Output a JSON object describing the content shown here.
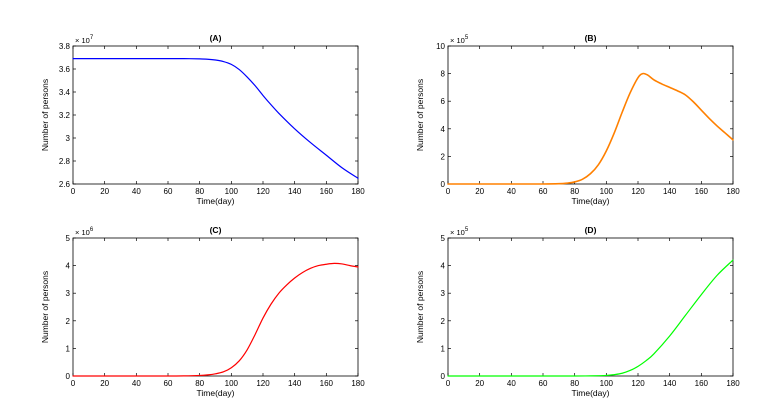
{
  "chart_data": [
    {
      "type": "line",
      "title": "(A)",
      "xlabel": "Time(day)",
      "ylabel": "Number of persons",
      "xlim": [
        0,
        180
      ],
      "xticks": [
        "0",
        "20",
        "40",
        "60",
        "80",
        "100",
        "120",
        "140",
        "160",
        "180"
      ],
      "ylim": [
        2.6,
        3.8
      ],
      "yticks": [
        "2.6",
        "2.8",
        "3",
        "3.2",
        "3.4",
        "3.6",
        "3.8"
      ],
      "multiplier_base": "× 10",
      "multiplier_exp": "7",
      "color": "#0000ff",
      "x": [
        0,
        20,
        40,
        60,
        70,
        80,
        85,
        90,
        95,
        100,
        105,
        110,
        115,
        120,
        125,
        130,
        140,
        150,
        160,
        170,
        180
      ],
      "y": [
        3.69,
        3.69,
        3.69,
        3.69,
        3.69,
        3.688,
        3.685,
        3.678,
        3.665,
        3.64,
        3.595,
        3.53,
        3.455,
        3.37,
        3.29,
        3.215,
        3.08,
        2.96,
        2.85,
        2.74,
        2.65
      ]
    },
    {
      "type": "line",
      "title": "(B)",
      "xlabel": "Time(day)",
      "ylabel": "Number of persons",
      "xlim": [
        0,
        180
      ],
      "xticks": [
        "0",
        "20",
        "40",
        "60",
        "80",
        "100",
        "120",
        "140",
        "160",
        "180"
      ],
      "ylim": [
        0,
        10
      ],
      "yticks": [
        "0",
        "2",
        "4",
        "6",
        "8",
        "10"
      ],
      "multiplier_base": "× 10",
      "multiplier_exp": "5",
      "color": "#ff8000",
      "x": [
        0,
        20,
        40,
        60,
        70,
        75,
        80,
        85,
        90,
        95,
        100,
        105,
        110,
        115,
        120,
        123,
        126,
        130,
        135,
        140,
        145,
        150,
        155,
        160,
        165,
        170,
        175,
        180
      ],
      "y": [
        0,
        0,
        0,
        0,
        0.02,
        0.06,
        0.15,
        0.35,
        0.75,
        1.4,
        2.4,
        3.7,
        5.2,
        6.6,
        7.7,
        8.0,
        7.9,
        7.55,
        7.25,
        7.0,
        6.75,
        6.45,
        5.95,
        5.35,
        4.75,
        4.2,
        3.7,
        3.2
      ]
    },
    {
      "type": "line",
      "title": "(C)",
      "xlabel": "Time(day)",
      "ylabel": "Number of persons",
      "xlim": [
        0,
        180
      ],
      "xticks": [
        "0",
        "20",
        "40",
        "60",
        "80",
        "100",
        "120",
        "140",
        "160",
        "180"
      ],
      "ylim": [
        0,
        5
      ],
      "yticks": [
        "0",
        "1",
        "2",
        "3",
        "4",
        "5"
      ],
      "multiplier_base": "× 10",
      "multiplier_exp": "6",
      "color": "#ff0000",
      "x": [
        0,
        20,
        40,
        60,
        70,
        80,
        85,
        90,
        95,
        100,
        105,
        110,
        115,
        120,
        125,
        130,
        135,
        140,
        145,
        150,
        155,
        160,
        165,
        170,
        175,
        180
      ],
      "y": [
        0,
        0,
        0,
        0,
        0.005,
        0.02,
        0.04,
        0.08,
        0.15,
        0.3,
        0.55,
        0.95,
        1.5,
        2.1,
        2.6,
        3.0,
        3.3,
        3.55,
        3.75,
        3.9,
        4.0,
        4.05,
        4.08,
        4.06,
        4.0,
        3.95
      ]
    },
    {
      "type": "line",
      "title": "(D)",
      "xlabel": "Time(day)",
      "ylabel": "Number of persons",
      "xlim": [
        0,
        180
      ],
      "xticks": [
        "0",
        "20",
        "40",
        "60",
        "80",
        "100",
        "120",
        "140",
        "160",
        "180"
      ],
      "ylim": [
        0,
        5
      ],
      "yticks": [
        "0",
        "1",
        "2",
        "3",
        "4",
        "5"
      ],
      "multiplier_base": "× 10",
      "multiplier_exp": "5",
      "color": "#00ff00",
      "x": [
        0,
        20,
        40,
        60,
        80,
        90,
        100,
        105,
        110,
        115,
        120,
        125,
        130,
        140,
        150,
        160,
        170,
        180
      ],
      "y": [
        0,
        0,
        0,
        0,
        0,
        0.005,
        0.02,
        0.05,
        0.1,
        0.2,
        0.35,
        0.55,
        0.8,
        1.45,
        2.2,
        2.95,
        3.65,
        4.2
      ]
    }
  ]
}
